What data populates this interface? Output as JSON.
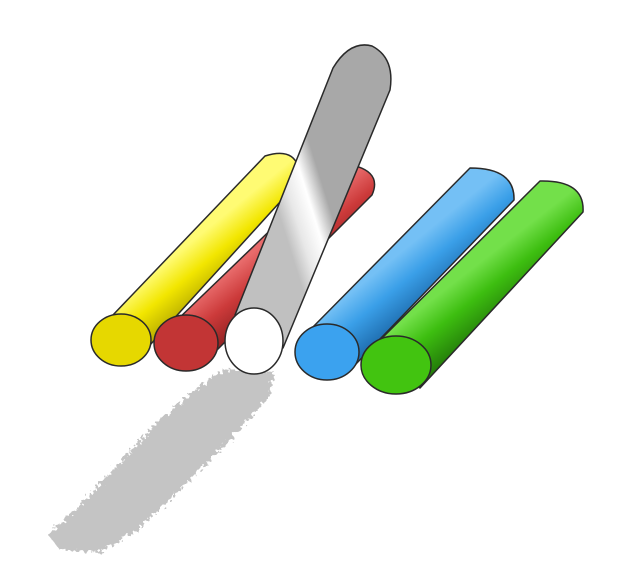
{
  "scene": {
    "background": "#ffffff",
    "shadow_color": "#c4c4c4",
    "outline_color": "#2a2a2a",
    "chalks": [
      {
        "name": "yellow-chalk",
        "color": "#f2e600",
        "light": "#fffb73",
        "dark": "#b3a800",
        "cap": "#e6d800"
      },
      {
        "name": "red-chalk",
        "color": "#cc3a3a",
        "light": "#e86b6b",
        "dark": "#8f2121",
        "cap": "#c23535"
      },
      {
        "name": "white-chalk",
        "color": "#f2f2f2",
        "light": "#ffffff",
        "dark": "#a8a8a8",
        "cap": "#ffffff"
      },
      {
        "name": "blue-chalk",
        "color": "#3a9fe8",
        "light": "#74c0f5",
        "dark": "#1f6eb0",
        "cap": "#3ba2ef"
      },
      {
        "name": "green-chalk",
        "color": "#3dbe10",
        "light": "#73e04a",
        "dark": "#25800a",
        "cap": "#42c410"
      }
    ]
  }
}
